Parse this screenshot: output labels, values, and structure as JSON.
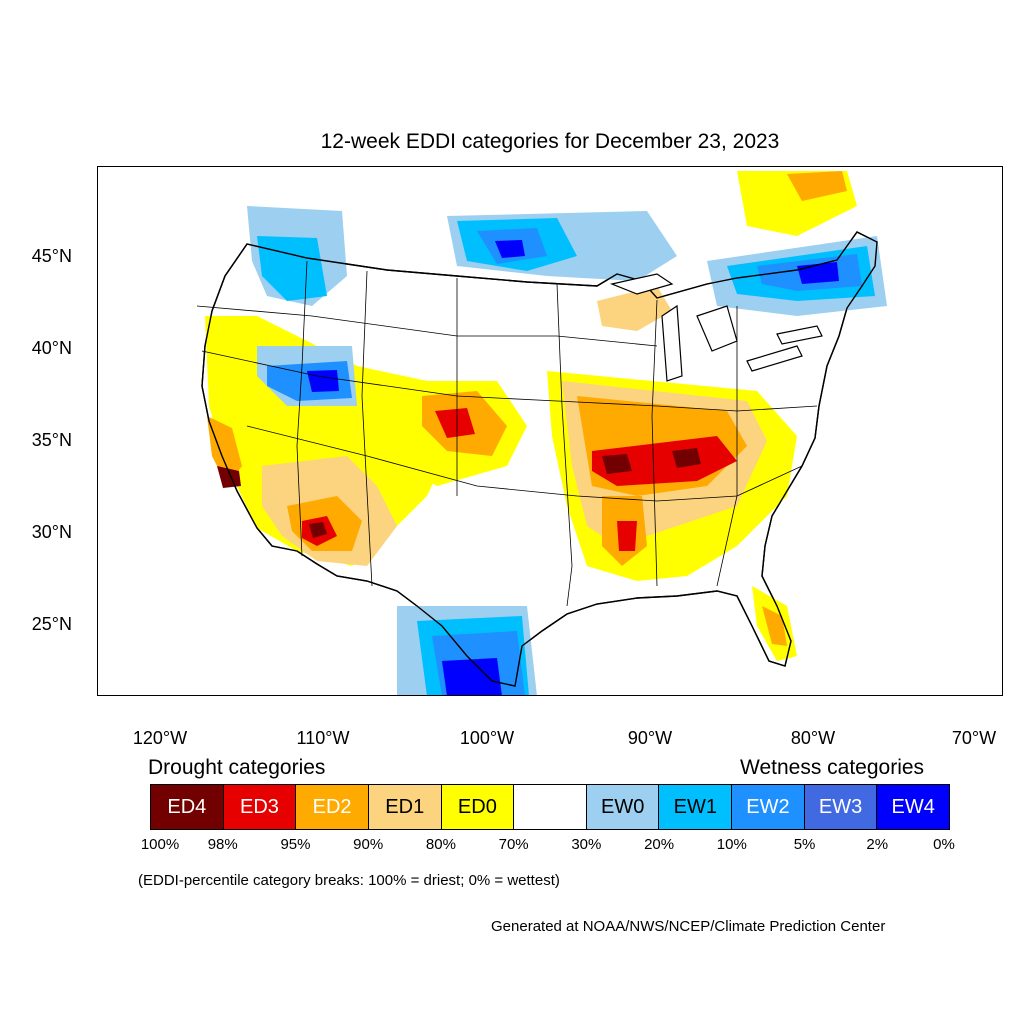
{
  "title": "12-week EDDI categories for December 23, 2023",
  "lat_labels": [
    "45°N",
    "40°N",
    "35°N",
    "30°N",
    "25°N"
  ],
  "lon_labels": [
    "120°W",
    "110°W",
    "100°W",
    "90°W",
    "80°W",
    "70°W"
  ],
  "legend": {
    "drought_title": "Drought categories",
    "wetness_title": "Wetness categories",
    "categories": [
      {
        "label": "ED4",
        "color": "#730000",
        "text_color": "#ffffff"
      },
      {
        "label": "ED3",
        "color": "#e60000",
        "text_color": "#ffffff"
      },
      {
        "label": "ED2",
        "color": "#ffaa00",
        "text_color": "#ffffff"
      },
      {
        "label": "ED1",
        "color": "#fcd37f",
        "text_color": "#000000"
      },
      {
        "label": "ED0",
        "color": "#ffff00",
        "text_color": "#000000"
      },
      {
        "label": "",
        "color": "#ffffff",
        "text_color": "#000000"
      },
      {
        "label": "EW0",
        "color": "#9dcff0",
        "text_color": "#000000"
      },
      {
        "label": "EW1",
        "color": "#00bfff",
        "text_color": "#000000"
      },
      {
        "label": "EW2",
        "color": "#1e90ff",
        "text_color": "#ffffff"
      },
      {
        "label": "EW3",
        "color": "#4169e1",
        "text_color": "#ffffff"
      },
      {
        "label": "EW4",
        "color": "#0000ff",
        "text_color": "#ffffff"
      }
    ],
    "percentiles": [
      "100%",
      "98%",
      "95%",
      "90%",
      "80%",
      "70%",
      "30%",
      "20%",
      "10%",
      "5%",
      "2%",
      "0%"
    ]
  },
  "note": "(EDDI-percentile category breaks: 100% = driest; 0% = wettest)",
  "credit": "Generated at NOAA/NWS/NCEP/Climate Prediction Center"
}
